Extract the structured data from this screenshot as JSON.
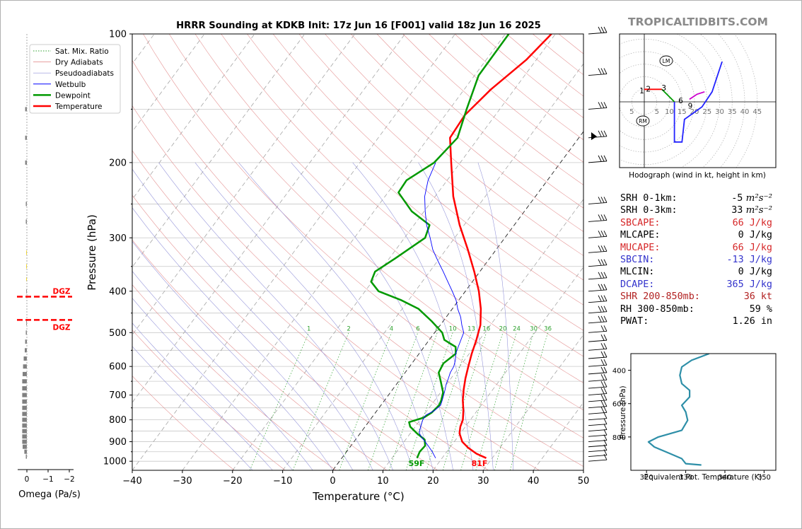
{
  "title": "HRRR Sounding at KDKB Init: 17z Jun 16 [F001] valid 18z Jun 16 2025",
  "watermark": "TROPICALTIDBITS.COM",
  "skewt": {
    "xlabel": "Temperature (°C)",
    "ylabel": "Pressure (hPa)",
    "xticks": [
      "−40",
      "−30",
      "−20",
      "−10",
      "0",
      "10",
      "20",
      "30",
      "40",
      "50"
    ],
    "xtick_values": [
      -40,
      -30,
      -20,
      -10,
      0,
      10,
      20,
      30,
      40,
      50
    ],
    "yticks": [
      "100",
      "200",
      "300",
      "400",
      "500",
      "600",
      "700",
      "800",
      "900",
      "1000"
    ],
    "ytick_values": [
      100,
      200,
      300,
      400,
      500,
      600,
      700,
      800,
      900,
      1000
    ],
    "xlim": [
      -40,
      50
    ],
    "ylim": [
      1050,
      100
    ],
    "mixing_ratio_labels": [
      "1",
      "2",
      "4",
      "6",
      "8",
      "10",
      "13",
      "16",
      "20",
      "24",
      "30",
      "36"
    ],
    "surface_temp_label": "81F",
    "surface_dewpoint_label": "59F"
  },
  "legend": {
    "items": [
      {
        "label": "Sat. Mix. Ratio",
        "color": "#2ca02c"
      },
      {
        "label": "Dry Adiabats",
        "color": "#e08080"
      },
      {
        "label": "Pseudoadiabats",
        "color": "#9090d8"
      },
      {
        "label": "Wetbulb",
        "color": "#0000ff"
      },
      {
        "label": "Dewpoint",
        "color": "#009900"
      },
      {
        "label": "Temperature",
        "color": "#ff0000"
      }
    ]
  },
  "omega": {
    "xlabel": "Omega (Pa/s)",
    "xticks": [
      "0",
      "−1",
      "−2"
    ],
    "dgz_label": "DGZ"
  },
  "hodograph": {
    "caption": "Hodograph (wind in kt, height in km)",
    "ring_labels": [
      "5",
      "10",
      "15",
      "20",
      "25",
      "30",
      "35",
      "40",
      "45"
    ],
    "left_label": "5",
    "height_labels": [
      "1",
      "2",
      "3",
      "6",
      "9"
    ],
    "lm_label": "LM",
    "rm_label": "RM"
  },
  "stats": [
    {
      "label": "SRH 0-1km:",
      "value": "-5",
      "unit": "m²s⁻²",
      "color": "#000000"
    },
    {
      "label": "SRH 0-3km:",
      "value": "33",
      "unit": "m²s⁻²",
      "color": "#000000"
    },
    {
      "label": "SBCAPE:",
      "value": "66 J/kg",
      "unit": "",
      "color": "#d62728"
    },
    {
      "label": "MLCAPE:",
      "value": "0 J/kg",
      "unit": "",
      "color": "#000000"
    },
    {
      "label": "MUCAPE:",
      "value": "66 J/kg",
      "unit": "",
      "color": "#d62728"
    },
    {
      "label": "SBCIN:",
      "value": "-13 J/kg",
      "unit": "",
      "color": "#3333cc"
    },
    {
      "label": "MLCIN:",
      "value": "0 J/kg",
      "unit": "",
      "color": "#000000"
    },
    {
      "label": "DCAPE:",
      "value": "365 J/kg",
      "unit": "",
      "color": "#3333cc"
    },
    {
      "label": "SHR 200-850mb:",
      "value": "36 kt",
      "unit": "",
      "color": "#b22222"
    },
    {
      "label": "RH 300-850mb:",
      "value": "59 %",
      "unit": "",
      "color": "#000000"
    },
    {
      "label": "PWAT:",
      "value": "1.26 in",
      "unit": "",
      "color": "#000000"
    }
  ],
  "theta_e": {
    "xlabel": "Equivalent Pot. Temperature (K)",
    "ylabel": "Pressure (hPa)",
    "xticks": [
      "320",
      "330",
      "340",
      "350"
    ],
    "xtick_values": [
      320,
      330,
      340,
      350
    ],
    "yticks": [
      "400",
      "600",
      "800"
    ],
    "ytick_values": [
      400,
      600,
      800
    ],
    "xlim": [
      316,
      353
    ],
    "ylim": [
      1000,
      300
    ]
  },
  "chart_data": [
    {
      "type": "line",
      "title": "HRRR Sounding at KDKB Init: 17z Jun 16 [F001] valid 18z Jun 16 2025",
      "xlabel": "Temperature (°C)",
      "ylabel": "Pressure (hPa)",
      "xlim": [
        -40,
        50
      ],
      "ylim": [
        1050,
        100
      ],
      "y_scale": "log",
      "series": [
        {
          "name": "Temperature",
          "color": "#ff0000",
          "pressure": [
            983,
            960,
            930,
            900,
            860,
            830,
            800,
            760,
            720,
            680,
            640,
            600,
            560,
            520,
            480,
            440,
            400,
            360,
            320,
            280,
            240,
            200,
            175,
            155,
            135,
            115,
            100
          ],
          "temperature": [
            28.8,
            26.2,
            23.7,
            21.6,
            19.8,
            19,
            18.5,
            17.2,
            15.6,
            14.2,
            12.9,
            11.7,
            10.5,
            9.4,
            8,
            5.7,
            2.7,
            -1.1,
            -5.6,
            -10.9,
            -16.4,
            -21.8,
            -25.7,
            -26.1,
            -24.7,
            -22,
            -20.8
          ]
        },
        {
          "name": "Dewpoint",
          "color": "#009900",
          "pressure": [
            983,
            950,
            920,
            890,
            860,
            830,
            810,
            790,
            770,
            740,
            720,
            690,
            650,
            620,
            590,
            560,
            540,
            520,
            500,
            470,
            440,
            420,
            400,
            380,
            360,
            335,
            300,
            280,
            260,
            235,
            220,
            200,
            175,
            150,
            125,
            100
          ],
          "temperature": [
            15,
            14.6,
            14.8,
            13.8,
            11.3,
            9,
            8.1,
            10.4,
            11.2,
            11.6,
            11.3,
            10.5,
            8.4,
            6.7,
            6.3,
            7.3,
            6.3,
            3,
            1.5,
            -2.3,
            -6.7,
            -11.4,
            -17.3,
            -20.2,
            -20.9,
            -18.8,
            -15.9,
            -16.9,
            -22.5,
            -27.9,
            -28.1,
            -25.2,
            -24.2,
            -26.6,
            -29.2,
            -29.3
          ]
        },
        {
          "name": "Wetbulb",
          "color": "#0000ff",
          "pressure": [
            983,
            950,
            920,
            900,
            880,
            860,
            840,
            820,
            800,
            780,
            760,
            740,
            720,
            700,
            680,
            660,
            640,
            620,
            600,
            580,
            560,
            540,
            520,
            500,
            480,
            460,
            440,
            420,
            400,
            380,
            360,
            340,
            320,
            300,
            280,
            260,
            240,
            220,
            200
          ],
          "temperature": [
            18.7,
            17.1,
            15.4,
            14.2,
            12.9,
            11.8,
            11.3,
            10.9,
            10.5,
            10.4,
            11.5,
            11.9,
            11.5,
            11,
            10.5,
            9.9,
            9.5,
            9,
            8.8,
            8.2,
            7.3,
            6.8,
            6.3,
            5.8,
            4.3,
            2.9,
            1.1,
            -0.5,
            -2.6,
            -4.9,
            -7.3,
            -9.9,
            -12.6,
            -14.9,
            -17.5,
            -19.8,
            -22.1,
            -23.8,
            -24.9
          ]
        }
      ],
      "mixing_ratio_labels": [
        1,
        2,
        4,
        6,
        8,
        10,
        13,
        16,
        20,
        24,
        30,
        36
      ]
    },
    {
      "type": "bar",
      "xlabel": "Omega (Pa/s)",
      "xlim": [
        0.3,
        -2.3
      ],
      "dgz_pressures": [
        412,
        467
      ],
      "levels_hpa": [
        100,
        150,
        175,
        200,
        250,
        275,
        300,
        325,
        350,
        375,
        400,
        425,
        450,
        475,
        500,
        525,
        550,
        575,
        600,
        625,
        650,
        675,
        700,
        725,
        750,
        775,
        800,
        825,
        850,
        875,
        900,
        925,
        950,
        975
      ],
      "omega_pa_s": [
        0,
        -0.08,
        -0.08,
        -0.08,
        -0.05,
        -0.05,
        0,
        -0.03,
        -0.03,
        -0.03,
        -0.03,
        0,
        0,
        -0.03,
        -0.05,
        -0.08,
        -0.1,
        -0.15,
        -0.18,
        -0.2,
        -0.22,
        -0.22,
        -0.22,
        -0.22,
        -0.22,
        -0.22,
        -0.22,
        -0.22,
        -0.22,
        -0.22,
        -0.22,
        -0.2,
        -0.12,
        -0.05
      ]
    },
    {
      "type": "line",
      "name": "Hodograph",
      "xlabel": "",
      "ylabel": "",
      "rings_kt": [
        5,
        10,
        15,
        20,
        25,
        30,
        35,
        40,
        45
      ],
      "segments": [
        {
          "color": "#ff0000",
          "points": [
            [
              0,
              5
            ],
            [
              7,
              5
            ]
          ]
        },
        {
          "color": "#009900",
          "points": [
            [
              7,
              5
            ],
            [
              12,
              0
            ]
          ]
        },
        {
          "color": "#2222ff",
          "points": [
            [
              12,
              0
            ],
            [
              12,
              -16
            ],
            [
              15,
              -16
            ],
            [
              16,
              -7
            ],
            [
              23,
              -2
            ],
            [
              27,
              4
            ],
            [
              31,
              16
            ]
          ]
        },
        {
          "color": "#cc00cc",
          "points": [
            [
              18,
              1
            ],
            [
              21,
              3
            ],
            [
              24,
              4
            ]
          ]
        }
      ],
      "labeled_heights_km": [
        1,
        2,
        3,
        6,
        9
      ],
      "storm_motion_labels": [
        "LM",
        "RM"
      ]
    },
    {
      "type": "line",
      "name": "Equivalent Potential Temperature",
      "xlabel": "Equivalent Pot. Temperature (K)",
      "ylabel": "Pressure (hPa)",
      "xlim": [
        316,
        353
      ],
      "ylim": [
        1000,
        300
      ],
      "color": "#2e8fa8",
      "pressure": [
        300,
        340,
        380,
        430,
        480,
        520,
        560,
        610,
        650,
        700,
        760,
        800,
        830,
        860,
        900,
        930,
        960,
        968
      ],
      "theta_e_k": [
        336,
        331.5,
        329,
        328.5,
        329,
        331,
        331,
        329,
        330,
        330.5,
        329,
        323,
        320.5,
        322,
        326,
        329,
        330,
        334
      ]
    }
  ]
}
